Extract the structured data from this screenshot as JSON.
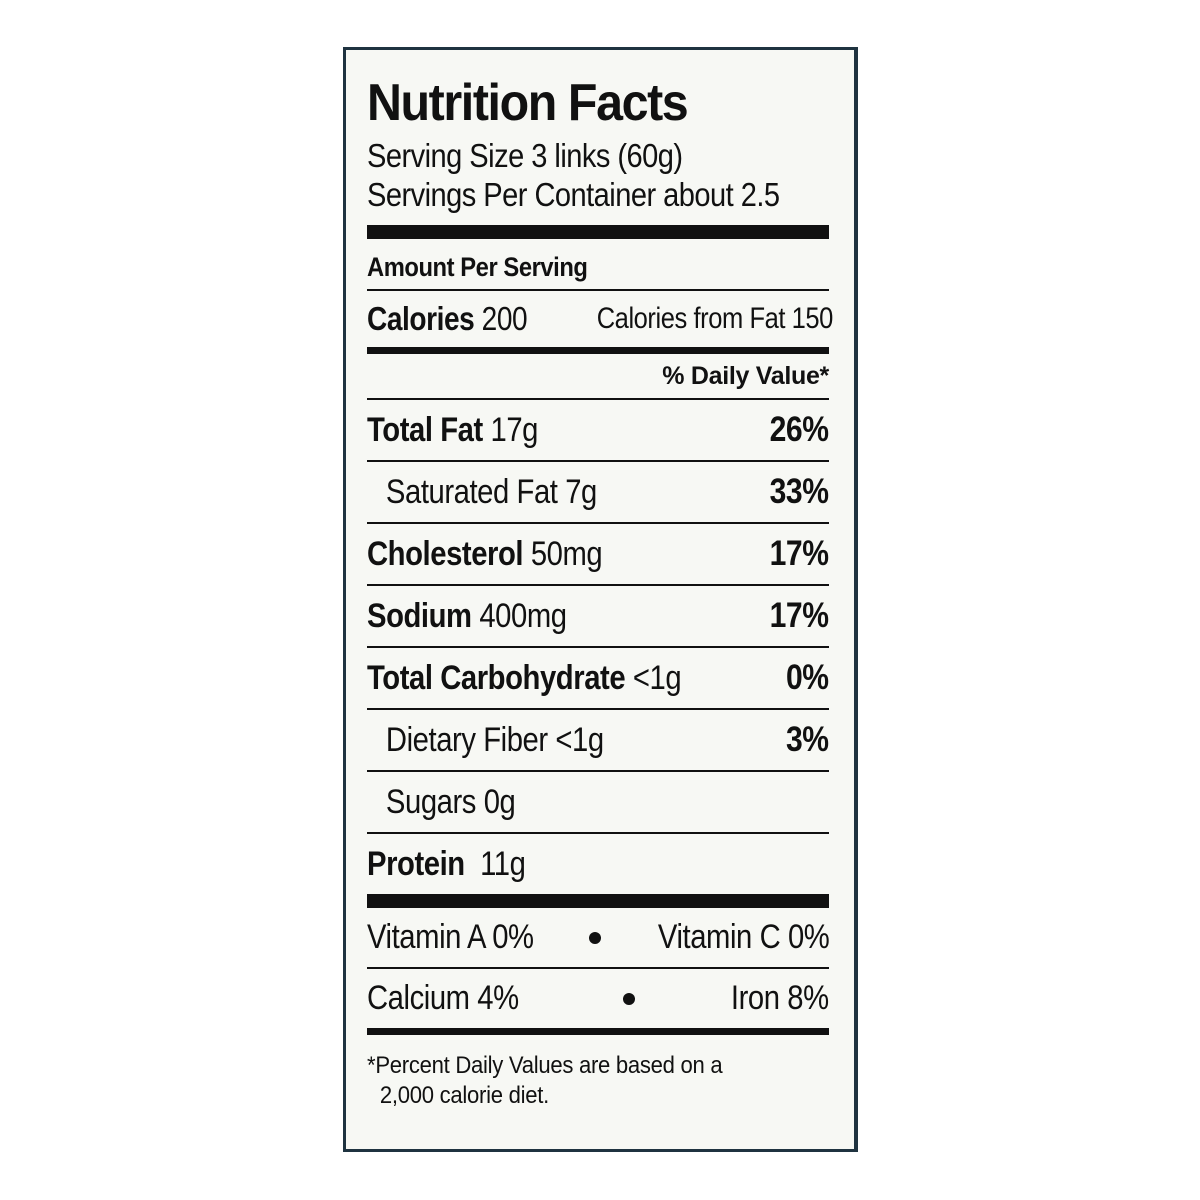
{
  "title": "Nutrition Facts",
  "serving_size": "Serving Size 3 links (60g)",
  "servings_per_container": "Servings Per Container about 2.5",
  "amount_per_serving": "Amount Per Serving",
  "calories": {
    "label": "Calories",
    "value": "200",
    "from_fat": "Calories from Fat 150"
  },
  "daily_value_header": "% Daily Value*",
  "nutrients": [
    {
      "name": "Total Fat",
      "amount": "17g",
      "dv": "26%"
    },
    {
      "name": "Saturated Fat",
      "amount": "7g",
      "dv": "33%"
    },
    {
      "name": "Cholesterol",
      "amount": "50mg",
      "dv": "17%"
    },
    {
      "name": "Sodium",
      "amount": "400mg",
      "dv": "17%"
    },
    {
      "name": "Total Carbohydrate",
      "amount": "<1g",
      "dv": "0%"
    },
    {
      "name": "Dietary Fiber",
      "amount": "<1g",
      "dv": "3%"
    },
    {
      "name": "Sugars",
      "amount": "0g",
      "dv": ""
    },
    {
      "name": "Protein",
      "amount": "11g",
      "dv": ""
    }
  ],
  "vitamins": [
    {
      "left": "Vitamin A 0%",
      "right": "Vitamin C 0%"
    },
    {
      "left": "Calcium 4%",
      "right": "Iron 8%"
    }
  ],
  "footnote": {
    "line1": "*Percent Daily Values are based on a",
    "line2": "2,000 calorie diet."
  },
  "colors": {
    "border": "#1f3340",
    "background": "#f7f8f4",
    "text": "#111111"
  }
}
